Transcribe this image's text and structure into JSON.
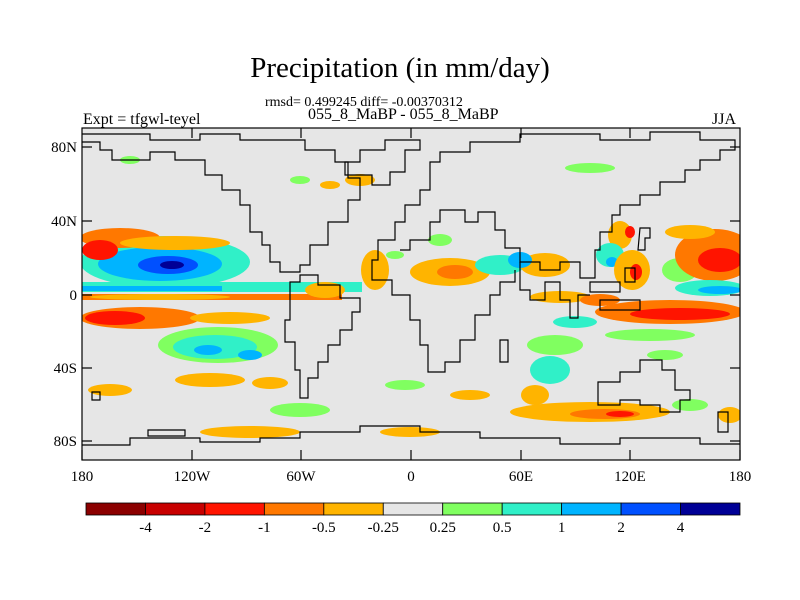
{
  "title": "Precipitation (in mm/day)",
  "stats": "rmsd= 0.499245 diff= -0.00370312",
  "subtitle": "055_8_MaBP - 055_8_MaBP",
  "expt": "Expt = tfgwl-teyel",
  "season": "JJA",
  "lat_labels": [
    "80N",
    "40N",
    "0",
    "40S",
    "80S"
  ],
  "lon_labels": [
    "180",
    "120W",
    "60W",
    "0",
    "60E",
    "120E",
    "180"
  ],
  "colorbar": {
    "colors": [
      "#8b0000",
      "#c80000",
      "#ff1400",
      "#ff7800",
      "#ffb400",
      "#e6e6e6",
      "#80ff60",
      "#30f0c8",
      "#00b4ff",
      "#0050ff",
      "#000096"
    ],
    "labels": [
      "-4",
      "-2",
      "-1",
      "-0.5",
      "-0.25",
      "0.25",
      "0.5",
      "1",
      "2",
      "4"
    ]
  },
  "colors": {
    "land_background": "#e6e6e6",
    "coastline": "#000000"
  }
}
